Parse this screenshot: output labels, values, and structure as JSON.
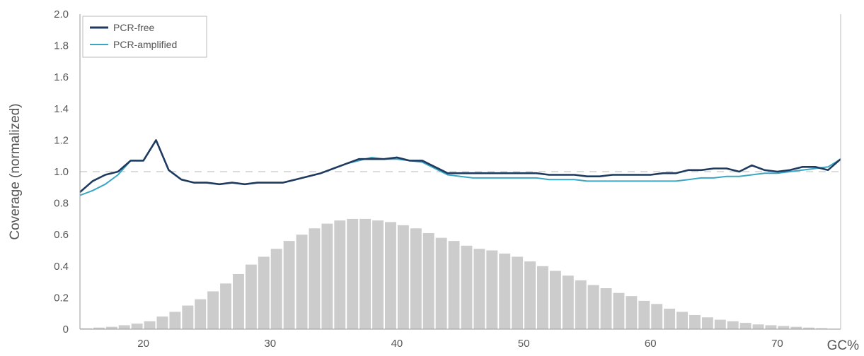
{
  "chart_data": {
    "type": "line",
    "title": "",
    "xlabel": "GC%",
    "ylabel": "Coverage (normalized)",
    "xlim": [
      15,
      75
    ],
    "ylim": [
      0,
      2.0
    ],
    "x_ticks": [
      "20",
      "30",
      "40",
      "50",
      "60",
      "70"
    ],
    "y_ticks": [
      "0",
      "0.2",
      "0.4",
      "0.6",
      "0.8",
      "1.0",
      "1.2",
      "1.4",
      "1.6",
      "1.8",
      "2.0"
    ],
    "reference_line": 1.0,
    "legend_position": "top-left",
    "colors": {
      "pcr_free": "#1f3a5f",
      "pcr_amplified": "#3aa6c4",
      "histogram": "#cccccc",
      "reference": "#c8c8c8"
    },
    "series": [
      {
        "name": "PCR-free",
        "x": [
          15,
          16,
          17,
          18,
          19,
          20,
          21,
          22,
          23,
          24,
          25,
          26,
          27,
          28,
          29,
          30,
          31,
          32,
          33,
          34,
          35,
          36,
          37,
          38,
          39,
          40,
          41,
          42,
          43,
          44,
          45,
          46,
          47,
          48,
          49,
          50,
          51,
          52,
          53,
          54,
          55,
          56,
          57,
          58,
          59,
          60,
          61,
          62,
          63,
          64,
          65,
          66,
          67,
          68,
          69,
          70,
          71,
          72,
          73,
          74,
          75
        ],
        "values": [
          0.87,
          0.94,
          0.98,
          1.0,
          1.07,
          1.07,
          1.2,
          1.01,
          0.95,
          0.93,
          0.93,
          0.92,
          0.93,
          0.92,
          0.93,
          0.93,
          0.93,
          0.95,
          0.97,
          0.99,
          1.02,
          1.05,
          1.08,
          1.08,
          1.08,
          1.09,
          1.07,
          1.07,
          1.03,
          0.99,
          0.99,
          0.99,
          0.99,
          0.99,
          0.99,
          0.99,
          0.99,
          0.98,
          0.98,
          0.98,
          0.97,
          0.97,
          0.98,
          0.98,
          0.98,
          0.98,
          0.99,
          0.99,
          1.01,
          1.01,
          1.02,
          1.02,
          1.0,
          1.04,
          1.01,
          1.0,
          1.01,
          1.03,
          1.03,
          1.01,
          1.08
        ]
      },
      {
        "name": "PCR-amplified",
        "x": [
          15,
          16,
          17,
          18,
          19,
          20,
          21,
          22,
          23,
          24,
          25,
          26,
          27,
          28,
          29,
          30,
          31,
          32,
          33,
          34,
          35,
          36,
          37,
          38,
          39,
          40,
          41,
          42,
          43,
          44,
          45,
          46,
          47,
          48,
          49,
          50,
          51,
          52,
          53,
          54,
          55,
          56,
          57,
          58,
          59,
          60,
          61,
          62,
          63,
          64,
          65,
          66,
          67,
          68,
          69,
          70,
          71,
          72,
          73,
          74,
          75
        ],
        "values": [
          0.85,
          0.88,
          0.92,
          0.98,
          1.07,
          1.07,
          1.2,
          1.01,
          0.95,
          0.93,
          0.93,
          0.92,
          0.93,
          0.92,
          0.93,
          0.93,
          0.93,
          0.95,
          0.97,
          0.99,
          1.02,
          1.05,
          1.07,
          1.09,
          1.08,
          1.08,
          1.07,
          1.06,
          1.02,
          0.98,
          0.97,
          0.96,
          0.96,
          0.96,
          0.96,
          0.96,
          0.96,
          0.95,
          0.95,
          0.95,
          0.94,
          0.94,
          0.94,
          0.94,
          0.94,
          0.94,
          0.94,
          0.94,
          0.95,
          0.96,
          0.96,
          0.97,
          0.97,
          0.98,
          0.99,
          0.99,
          1.0,
          1.01,
          1.02,
          1.03,
          1.08
        ]
      }
    ],
    "histogram": {
      "x": [
        15,
        16,
        17,
        18,
        19,
        20,
        21,
        22,
        23,
        24,
        25,
        26,
        27,
        28,
        29,
        30,
        31,
        32,
        33,
        34,
        35,
        36,
        37,
        38,
        39,
        40,
        41,
        42,
        43,
        44,
        45,
        46,
        47,
        48,
        49,
        50,
        51,
        52,
        53,
        54,
        55,
        56,
        57,
        58,
        59,
        60,
        61,
        62,
        63,
        64,
        65,
        66,
        67,
        68,
        69,
        70,
        71,
        72,
        73,
        74
      ],
      "values": [
        0.005,
        0.01,
        0.015,
        0.025,
        0.035,
        0.05,
        0.08,
        0.11,
        0.15,
        0.19,
        0.24,
        0.29,
        0.35,
        0.41,
        0.46,
        0.51,
        0.56,
        0.6,
        0.64,
        0.67,
        0.69,
        0.7,
        0.7,
        0.69,
        0.68,
        0.66,
        0.64,
        0.61,
        0.58,
        0.56,
        0.53,
        0.51,
        0.5,
        0.48,
        0.46,
        0.43,
        0.4,
        0.37,
        0.34,
        0.31,
        0.28,
        0.26,
        0.23,
        0.21,
        0.18,
        0.16,
        0.13,
        0.11,
        0.09,
        0.075,
        0.06,
        0.05,
        0.04,
        0.03,
        0.025,
        0.02,
        0.015,
        0.01,
        0.006,
        0.003
      ]
    }
  }
}
